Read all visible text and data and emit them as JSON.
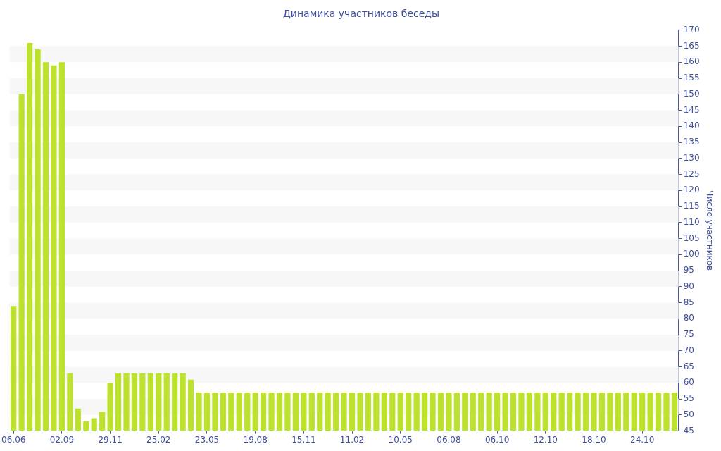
{
  "chart_data": {
    "type": "bar",
    "title": "Динамика участников беседы",
    "y2label": "Число участников",
    "categories": [
      "06.06",
      null,
      null,
      null,
      null,
      null,
      "02.09",
      null,
      null,
      null,
      null,
      null,
      "29.11",
      null,
      null,
      null,
      null,
      null,
      "25.02",
      null,
      null,
      null,
      null,
      null,
      "23.05",
      null,
      null,
      null,
      null,
      null,
      "19.08",
      null,
      null,
      null,
      null,
      null,
      "15.11",
      null,
      null,
      null,
      null,
      null,
      "11.02",
      null,
      null,
      null,
      null,
      null,
      "10.05",
      null,
      null,
      null,
      null,
      null,
      "06.08",
      null,
      null,
      null,
      null,
      null,
      "06.10",
      null,
      null,
      null,
      null,
      null,
      "12.10",
      null,
      null,
      null,
      null,
      null,
      "18.10",
      null,
      null,
      null,
      null,
      null,
      "24.10",
      null,
      null,
      null,
      null
    ],
    "series": [
      {
        "color": "#bde22e",
        "axis": "y2",
        "values": [
          84,
          150,
          166,
          164,
          160,
          159,
          160,
          63,
          52,
          48,
          49,
          51,
          60,
          63,
          63,
          63,
          63,
          63,
          63,
          63,
          63,
          63,
          61,
          57,
          57,
          57,
          57,
          57,
          57,
          57,
          57,
          57,
          57,
          57,
          57,
          57,
          57,
          57,
          57,
          57,
          57,
          57,
          57,
          57,
          57,
          57,
          57,
          57,
          57,
          57,
          57,
          57,
          57,
          57,
          57,
          57,
          57,
          57,
          57,
          57,
          57,
          57,
          57,
          57,
          57,
          57,
          57,
          57,
          57,
          57,
          57,
          57,
          57,
          57,
          57,
          57,
          57,
          57,
          57,
          57,
          57,
          57,
          57
        ]
      }
    ],
    "y2lim": [
      45,
      170
    ],
    "y2ticks": [
      45,
      50,
      55,
      60,
      65,
      70,
      75,
      80,
      85,
      90,
      95,
      100,
      105,
      110,
      115,
      120,
      125,
      130,
      135,
      140,
      145,
      150,
      155,
      160,
      165,
      170
    ],
    "bands": [
      {
        "axis": "y2",
        "from": 50,
        "to": 55,
        "color": "#f7f7f7"
      },
      {
        "axis": "y2",
        "from": 60,
        "to": 65,
        "color": "#f7f7f7"
      },
      {
        "axis": "y2",
        "from": 70,
        "to": 75,
        "color": "#f7f7f7"
      },
      {
        "axis": "y2",
        "from": 80,
        "to": 85,
        "color": "#f7f7f7"
      },
      {
        "axis": "y2",
        "from": 90,
        "to": 95,
        "color": "#f7f7f7"
      },
      {
        "axis": "y2",
        "from": 100,
        "to": 105,
        "color": "#f7f7f7"
      },
      {
        "axis": "y2",
        "from": 110,
        "to": 115,
        "color": "#f7f7f7"
      },
      {
        "axis": "y2",
        "from": 120,
        "to": 125,
        "color": "#f7f7f7"
      },
      {
        "axis": "y2",
        "from": 130,
        "to": 135,
        "color": "#f7f7f7"
      },
      {
        "axis": "y2",
        "from": 140,
        "to": 145,
        "color": "#f7f7f7"
      },
      {
        "axis": "y2",
        "from": 150,
        "to": 155,
        "color": "#f7f7f7"
      },
      {
        "axis": "y2",
        "from": 160,
        "to": 165,
        "color": "#f7f7f7"
      }
    ],
    "legend": false
  }
}
